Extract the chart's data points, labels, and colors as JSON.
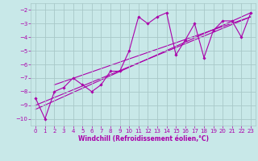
{
  "xlabel": "Windchill (Refroidissement éolien,°C)",
  "background_color": "#c8e8e8",
  "grid_color": "#a8c8c8",
  "line_color": "#aa00aa",
  "xlim": [
    -0.5,
    23.5
  ],
  "ylim": [
    -10.5,
    -1.5
  ],
  "yticks": [
    -10,
    -9,
    -8,
    -7,
    -6,
    -5,
    -4,
    -3,
    -2
  ],
  "xticks": [
    0,
    1,
    2,
    3,
    4,
    5,
    6,
    7,
    8,
    9,
    10,
    11,
    12,
    13,
    14,
    15,
    16,
    17,
    18,
    19,
    20,
    21,
    22,
    23
  ],
  "series_x": [
    0,
    1,
    2,
    3,
    4,
    5,
    6,
    7,
    8,
    9,
    10,
    11,
    12,
    13,
    14,
    15,
    16,
    17,
    18,
    19,
    20,
    21,
    22,
    23
  ],
  "series_y": [
    -8.5,
    -10.0,
    -8.0,
    -7.7,
    -7.0,
    -7.5,
    -8.0,
    -7.5,
    -6.5,
    -6.5,
    -5.0,
    -2.5,
    -3.0,
    -2.5,
    -2.2,
    -5.3,
    -4.2,
    -3.0,
    -5.5,
    -3.5,
    -2.8,
    -2.8,
    -4.0,
    -2.2
  ],
  "regression_lines": [
    {
      "x": [
        0,
        23
      ],
      "y": [
        -9.3,
        -2.2
      ]
    },
    {
      "x": [
        0,
        23
      ],
      "y": [
        -9.0,
        -2.5
      ]
    },
    {
      "x": [
        2,
        23
      ],
      "y": [
        -7.5,
        -2.5
      ]
    }
  ],
  "xlabel_fontsize": 5.5,
  "tick_fontsize": 5.0,
  "marker": "D",
  "markersize": 1.8,
  "linewidth": 0.8
}
